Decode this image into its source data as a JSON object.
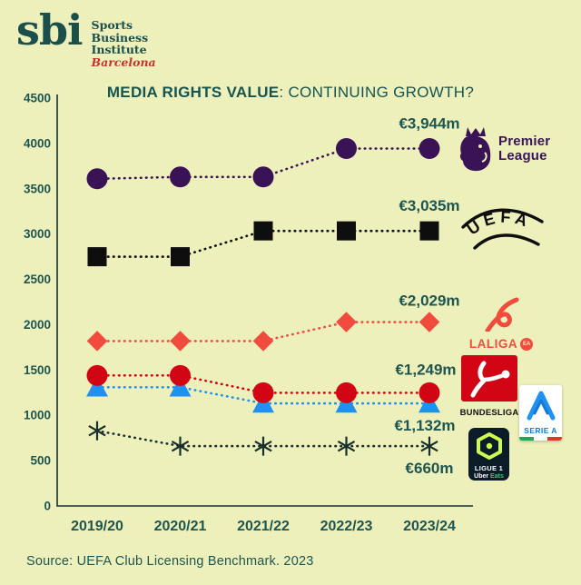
{
  "brand": {
    "logo_text": "sbi",
    "org_lines": [
      "Sports",
      "Business",
      "Institute"
    ],
    "city": "Barcelona"
  },
  "title": {
    "bold": "MEDIA RIGHTS VALUE",
    "rest": ": CONTINUING GROWTH?"
  },
  "source": "Source: UEFA Club Licensing Benchmark. 2023",
  "colors": {
    "background": "#eef0bb",
    "teal": "#1d5551",
    "axis": "#14302d",
    "premier_purple": "#3a1356",
    "uefa_black": "#0e0e0e",
    "laliga_red": "#f14b3e",
    "bundesliga_red": "#d20515",
    "seriea_blue": "#2191ef",
    "seriea_dark": "#1479d6",
    "ligue1_navy": "#0b1c28",
    "ligue1_lime": "#cdfb51",
    "flag_green": "#1faa55",
    "flag_white": "#ffffff",
    "flag_red": "#e0372c"
  },
  "chart_data": {
    "type": "line",
    "title": "MEDIA RIGHTS VALUE: CONTINUING GROWTH?",
    "unit": "€m",
    "x_categories": [
      "2019/20",
      "2020/21",
      "2021/22",
      "2022/23",
      "2023/24"
    ],
    "ylim": [
      0,
      4500
    ],
    "yticks": [
      4500,
      4000,
      3500,
      3000,
      2500,
      2000,
      1500,
      1000,
      500,
      0
    ],
    "grid": false,
    "line_style": "dotted",
    "legend_position": "right",
    "series": [
      {
        "name": "Premier League",
        "marker": "circle",
        "size": 11.5,
        "color": "#3a1356",
        "values": [
          3610,
          3630,
          3630,
          3944,
          3944
        ],
        "end_label": "€3,944m",
        "label_offset": [
          0,
          -22
        ]
      },
      {
        "name": "UEFA",
        "marker": "square",
        "size": 10.5,
        "color": "#0e0e0e",
        "values": [
          2750,
          2750,
          3035,
          3035,
          3035
        ],
        "end_label": "€3,035m",
        "label_offset": [
          0,
          -22
        ]
      },
      {
        "name": "LALIGA",
        "marker": "diamond",
        "size": 8,
        "color": "#f14b3e",
        "values": [
          1820,
          1820,
          1820,
          2029,
          2029
        ],
        "end_label": "€2,029m",
        "label_offset": [
          0,
          -18
        ]
      },
      {
        "name": "Serie A",
        "marker": "triangle",
        "size": 12,
        "color": "#2191ef",
        "values": [
          1310,
          1310,
          1132,
          1132,
          1132
        ],
        "end_label": "€1,132m",
        "label_offset": [
          -5,
          30
        ]
      },
      {
        "name": "Bundesliga",
        "marker": "circle",
        "size": 11.5,
        "color": "#d20515",
        "values": [
          1440,
          1440,
          1249,
          1249,
          1249
        ],
        "end_label": "€1,249m",
        "label_offset": [
          -4,
          -20
        ]
      },
      {
        "name": "Ligue 1",
        "marker": "star",
        "size": 10.5,
        "color": "#182f2c",
        "values": [
          830,
          660,
          660,
          660,
          660
        ],
        "end_label": "€660m",
        "label_offset": [
          0,
          30
        ]
      }
    ]
  },
  "logos": {
    "premier_league": {
      "lines": [
        "Premier",
        "League"
      ]
    },
    "uefa": {
      "text": "UEFA"
    },
    "laliga": {
      "wordmark": "LALIGA",
      "badge": "EA"
    },
    "bundesliga": {
      "wordmark": "BUNDESLIGA"
    },
    "serie_a": {
      "wordmark": "SERIE A"
    },
    "ligue_1": {
      "league": "LIGUE 1",
      "sponsor_a": "Uber",
      "sponsor_b": "Eats"
    }
  }
}
